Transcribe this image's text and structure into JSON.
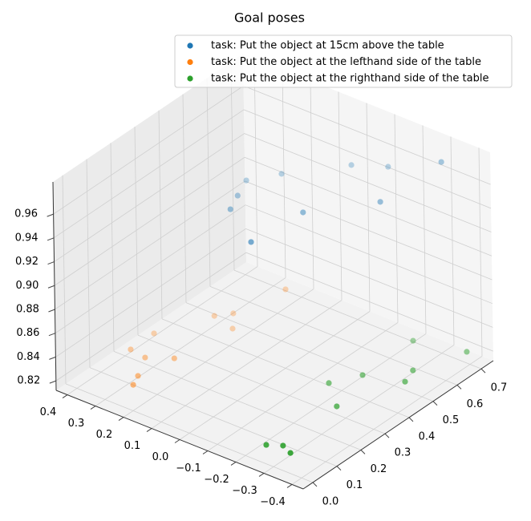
{
  "chart_data": {
    "type": "scatter3d",
    "title": "Goal poses",
    "xlim": [
      -0.04,
      0.75
    ],
    "ylim": [
      -0.44,
      0.44
    ],
    "zlim": [
      0.812,
      0.987
    ],
    "xticks": [
      {
        "value": 0,
        "label": "0.0"
      },
      0.1,
      0.2,
      0.3,
      0.4,
      0.5,
      0.6,
      0.7
    ],
    "yticks": [
      {
        "value": 0.4,
        "label": "0.4"
      },
      0.3,
      0.2,
      0.1,
      {
        "value": 0,
        "label": "0.0"
      },
      {
        "value": -0.1,
        "label": "−0.1"
      },
      {
        "value": -0.2,
        "label": "−0.2"
      },
      {
        "value": -0.3,
        "label": "−0.3"
      },
      {
        "value": -0.4,
        "label": "−0.4"
      }
    ],
    "zticks": [
      0.82,
      0.84,
      0.86,
      0.88,
      {
        "value": 0.9,
        "label": "0.90"
      },
      0.92,
      0.94,
      0.96
    ],
    "grid": true,
    "legend": "upper right",
    "series": [
      {
        "name": "task: Put the object at 15cm above the table",
        "color": "#1f77b4",
        "x": [
          0.203,
          0.298,
          0.362,
          0.434,
          0.514,
          0.398,
          0.656,
          0.706,
          0.558,
          0.715
        ],
        "y": [
          -0.055,
          0.1,
          0.129,
          0.16,
          0.103,
          -0.073,
          -0.024,
          -0.112,
          -0.211,
          -0.295
        ],
        "z": [
          0.95,
          0.95,
          0.95,
          0.95,
          0.95,
          0.95,
          0.95,
          0.95,
          0.95,
          0.97
        ]
      },
      {
        "name": "task: Put the object at the lefthand side of the table",
        "color": "#ff7f0e",
        "x": [
          0.623,
          0.449,
          0.41,
          0.389,
          0.249,
          0.151,
          0.142,
          0.184,
          0.06,
          0.018
        ],
        "y": [
          0.19,
          0.227,
          0.261,
          0.178,
          0.338,
          0.337,
          0.278,
          0.21,
          0.233,
          0.214
        ],
        "z": [
          0.83,
          0.83,
          0.83,
          0.83,
          0.83,
          0.83,
          0.83,
          0.83,
          0.83,
          0.83
        ]
      },
      {
        "name": "task: Put the object at the righthand side of the table",
        "color": "#2ca02c",
        "x": [
          0.621,
          0.661,
          0.506,
          0.41,
          0.45,
          0.327,
          0.249,
          -0.009,
          0.014,
          -0.003
        ],
        "y": [
          -0.266,
          -0.423,
          -0.364,
          -0.267,
          -0.384,
          -0.218,
          -0.313,
          -0.283,
          -0.323,
          -0.364
        ],
        "z": [
          0.83,
          0.83,
          0.83,
          0.83,
          0.83,
          0.83,
          0.83,
          0.83,
          0.83,
          0.83
        ]
      }
    ]
  }
}
